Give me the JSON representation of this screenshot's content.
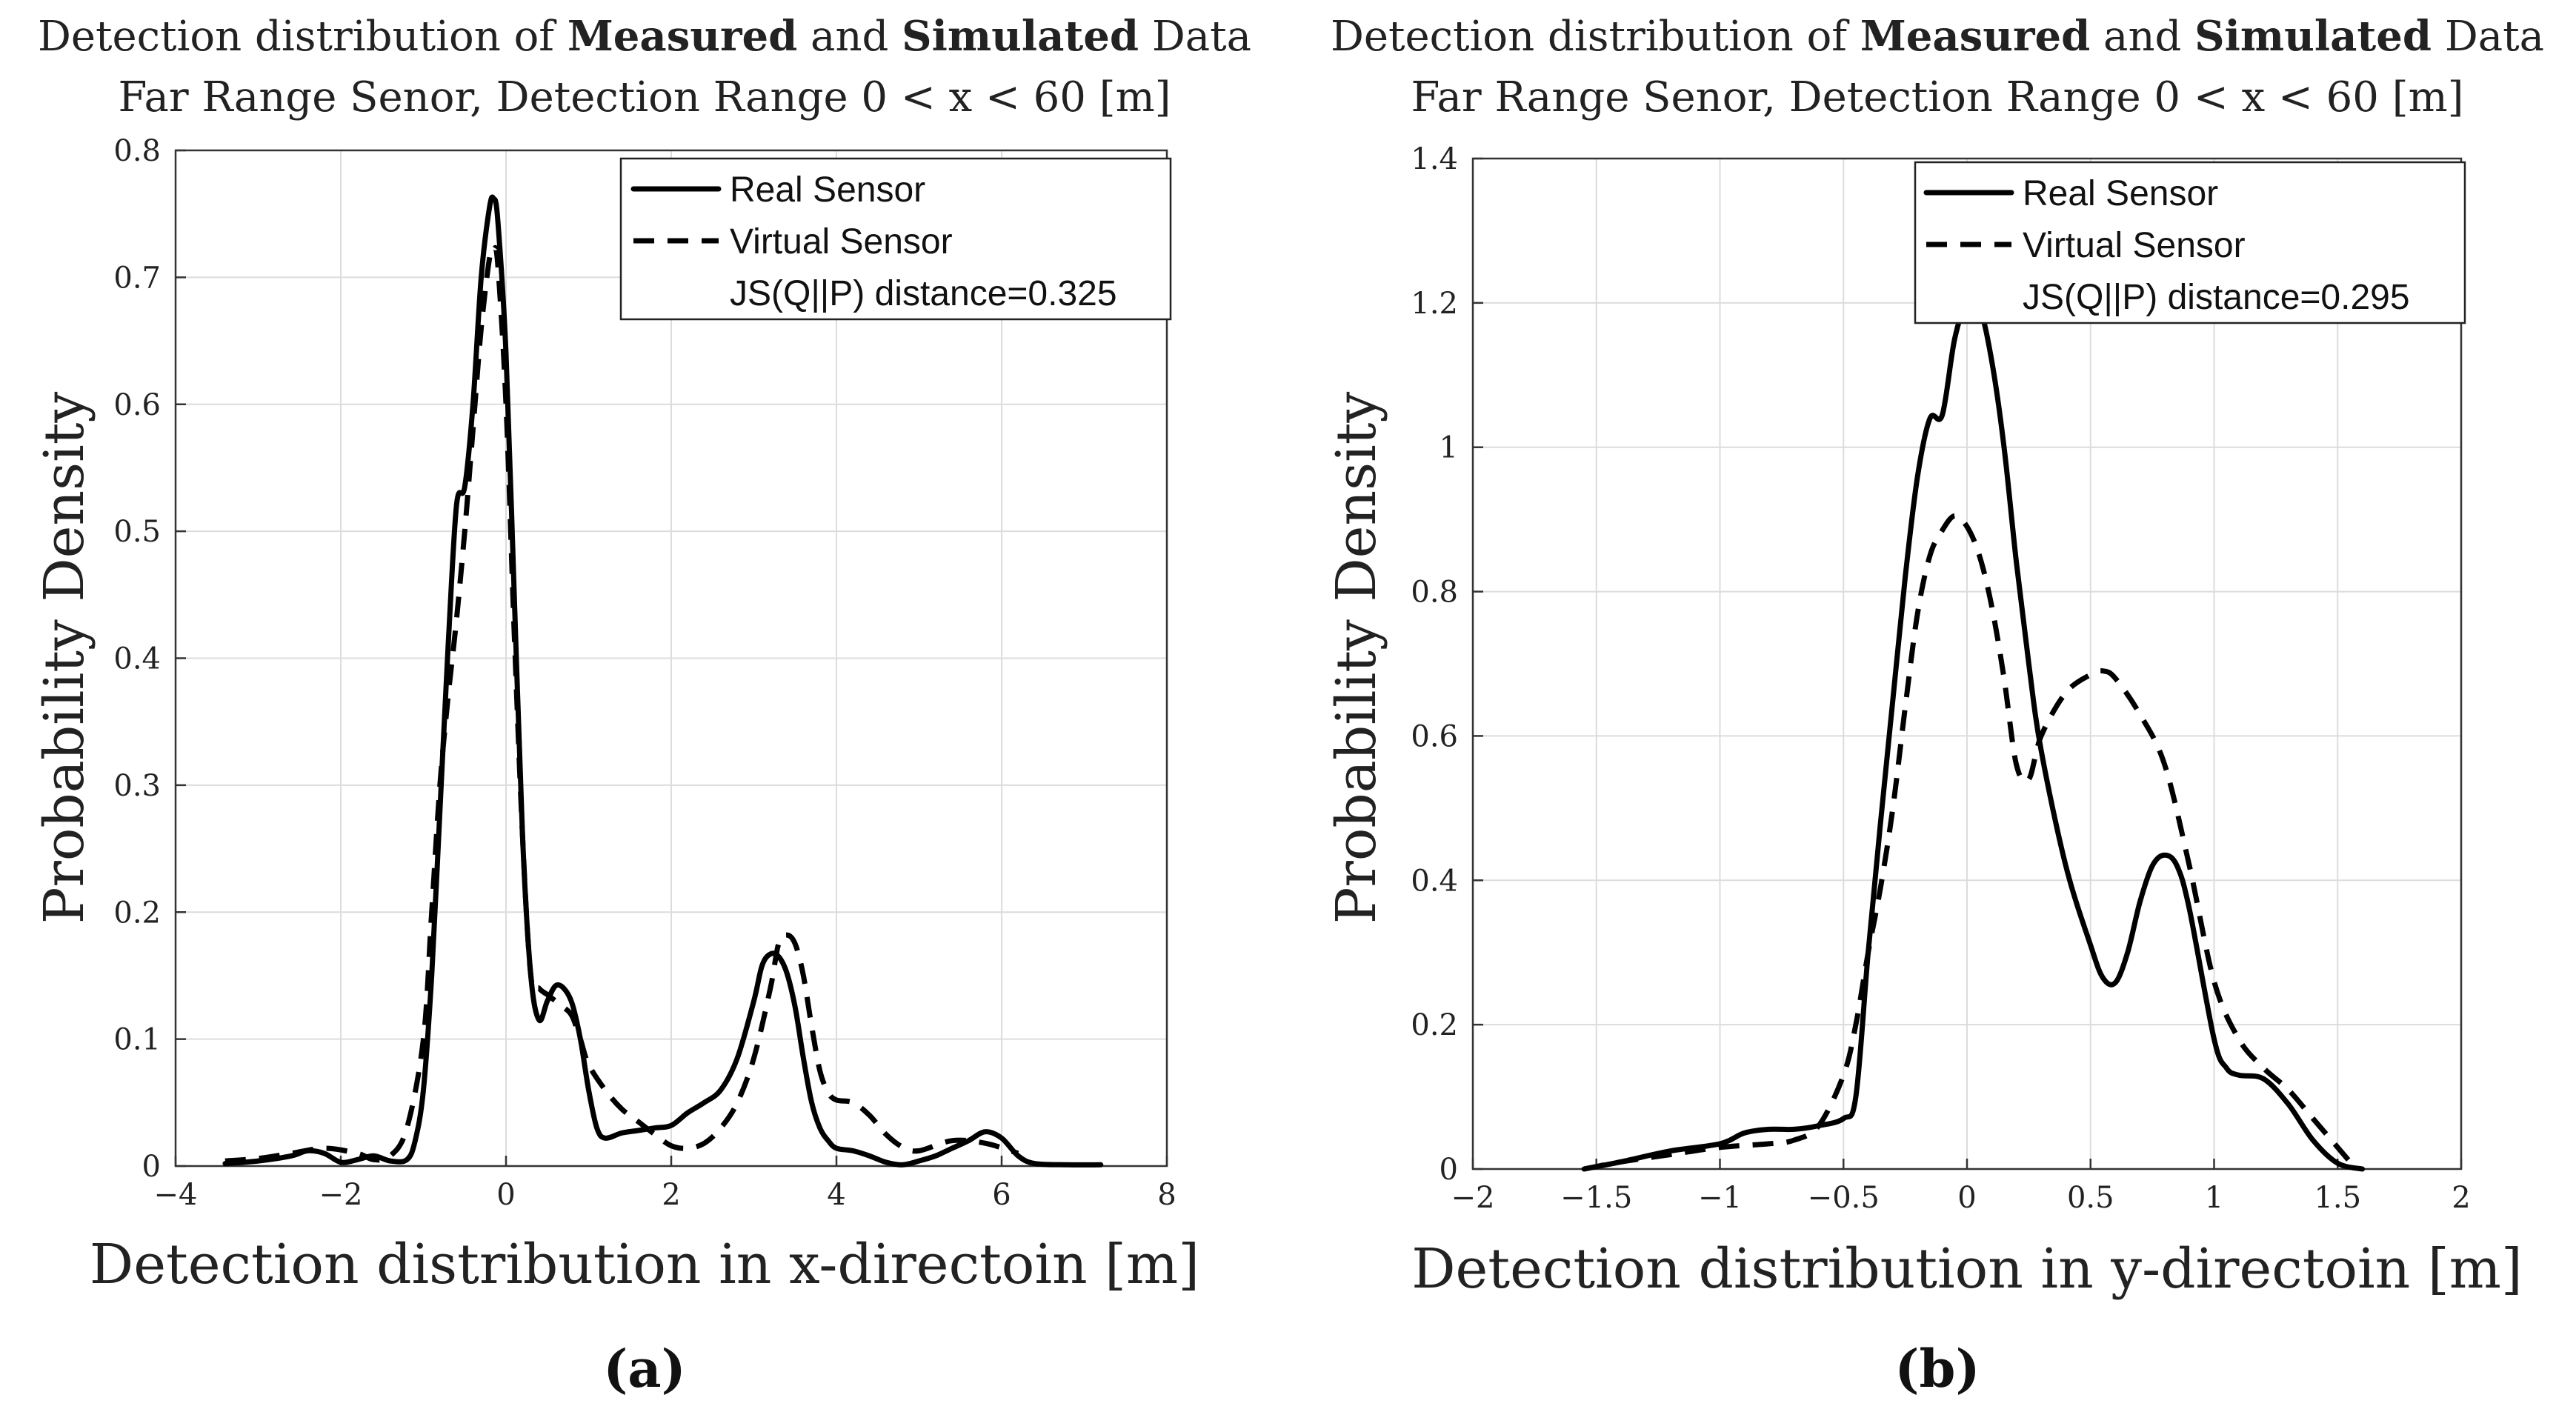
{
  "chart_data": [
    {
      "type": "line",
      "title_prefix": "Detection distribution of ",
      "title_bold_1": "Measured",
      "title_mid": " and ",
      "title_bold_2": "Simulated",
      "title_suffix": " Data",
      "subtitle": "Far Range Senor, Detection Range 0 < x < 60 [m]",
      "xlabel": "Detection distribution in x-directoin [m]",
      "ylabel": "Probability Density",
      "xlim": [
        -4,
        8
      ],
      "ylim": [
        0,
        0.8
      ],
      "xticks": [
        -4,
        -2,
        0,
        2,
        4,
        6,
        8
      ],
      "xtick_labels": [
        "−4",
        "−2",
        "0",
        "2",
        "4",
        "6",
        "8"
      ],
      "yticks": [
        0,
        0.1,
        0.2,
        0.3,
        0.4,
        0.5,
        0.6,
        0.7,
        0.8
      ],
      "ytick_labels": [
        "0",
        "0.1",
        "0.2",
        "0.3",
        "0.4",
        "0.5",
        "0.6",
        "0.7",
        "0.8"
      ],
      "grid": true,
      "legend_position": "top-right",
      "legend": [
        "Real Sensor",
        "Virtual Sensor",
        "JS(Q||P) distance=0.325"
      ],
      "caption": "(a)",
      "series": [
        {
          "name": "Real Sensor",
          "style": "solid",
          "x": [
            -3.4,
            -3.0,
            -2.6,
            -2.4,
            -2.2,
            -2.0,
            -1.8,
            -1.6,
            -1.4,
            -1.2,
            -1.1,
            -1.0,
            -0.9,
            -0.8,
            -0.7,
            -0.6,
            -0.5,
            -0.4,
            -0.3,
            -0.2,
            -0.15,
            -0.1,
            0.0,
            0.1,
            0.2,
            0.3,
            0.4,
            0.5,
            0.6,
            0.7,
            0.8,
            0.9,
            1.0,
            1.1,
            1.2,
            1.4,
            1.6,
            1.8,
            2.0,
            2.2,
            2.4,
            2.6,
            2.8,
            3.0,
            3.1,
            3.2,
            3.3,
            3.4,
            3.5,
            3.6,
            3.7,
            3.8,
            3.9,
            4.0,
            4.2,
            4.4,
            4.6,
            4.8,
            5.0,
            5.2,
            5.4,
            5.6,
            5.8,
            6.0,
            6.2,
            6.4,
            6.8,
            7.2
          ],
          "values": [
            0.002,
            0.004,
            0.008,
            0.012,
            0.01,
            0.003,
            0.005,
            0.008,
            0.004,
            0.005,
            0.02,
            0.06,
            0.15,
            0.28,
            0.41,
            0.52,
            0.535,
            0.6,
            0.7,
            0.755,
            0.762,
            0.745,
            0.64,
            0.45,
            0.26,
            0.15,
            0.115,
            0.13,
            0.142,
            0.14,
            0.128,
            0.1,
            0.06,
            0.03,
            0.022,
            0.026,
            0.028,
            0.03,
            0.032,
            0.042,
            0.05,
            0.06,
            0.085,
            0.13,
            0.158,
            0.167,
            0.165,
            0.152,
            0.125,
            0.085,
            0.05,
            0.03,
            0.02,
            0.014,
            0.012,
            0.008,
            0.003,
            0.001,
            0.004,
            0.008,
            0.014,
            0.02,
            0.027,
            0.022,
            0.008,
            0.002,
            0.001,
            0.001
          ]
        },
        {
          "name": "Virtual Sensor",
          "style": "dashed",
          "x": [
            -3.4,
            -3.0,
            -2.6,
            -2.2,
            -1.8,
            -1.6,
            -1.4,
            -1.2,
            -1.0,
            -0.9,
            -0.8,
            -0.7,
            -0.6,
            -0.5,
            -0.4,
            -0.3,
            -0.2,
            -0.15,
            -0.1,
            0.0,
            0.1,
            0.2,
            0.3,
            0.4,
            0.5,
            0.6,
            0.7,
            0.8,
            0.9,
            1.0,
            1.2,
            1.4,
            1.6,
            1.8,
            2.0,
            2.2,
            2.4,
            2.6,
            2.8,
            3.0,
            3.2,
            3.3,
            3.4,
            3.5,
            3.6,
            3.7,
            3.8,
            3.9,
            4.0,
            4.2,
            4.4,
            4.6,
            4.8,
            5.0,
            5.4,
            5.8,
            6.2
          ],
          "values": [
            0.004,
            0.006,
            0.01,
            0.014,
            0.01,
            0.005,
            0.008,
            0.03,
            0.1,
            0.2,
            0.3,
            0.37,
            0.43,
            0.5,
            0.58,
            0.66,
            0.715,
            0.722,
            0.71,
            0.6,
            0.42,
            0.26,
            0.15,
            0.14,
            0.135,
            0.13,
            0.125,
            0.118,
            0.1,
            0.08,
            0.06,
            0.045,
            0.035,
            0.025,
            0.016,
            0.014,
            0.018,
            0.03,
            0.05,
            0.085,
            0.14,
            0.175,
            0.182,
            0.175,
            0.15,
            0.11,
            0.075,
            0.058,
            0.052,
            0.05,
            0.04,
            0.025,
            0.015,
            0.012,
            0.02,
            0.018,
            0.01
          ]
        }
      ]
    },
    {
      "type": "line",
      "title_prefix": "Detection distribution of ",
      "title_bold_1": "Measured",
      "title_mid": " and ",
      "title_bold_2": "Simulated",
      "title_suffix": " Data",
      "subtitle": "Far Range Senor, Detection Range 0 < x < 60 [m]",
      "xlabel": "Detection distribution in y-directoin [m]",
      "ylabel": "Probability Density",
      "xlim": [
        -2,
        2
      ],
      "ylim": [
        0,
        1.4
      ],
      "xticks": [
        -2,
        -1.5,
        -1,
        -0.5,
        0,
        0.5,
        1,
        1.5,
        2
      ],
      "xtick_labels": [
        "−2",
        "−1.5",
        "−1",
        "−0.5",
        "0",
        "0.5",
        "1",
        "1.5",
        "2"
      ],
      "yticks": [
        0,
        0.2,
        0.4,
        0.6,
        0.8,
        1,
        1.2,
        1.4
      ],
      "ytick_labels": [
        "0",
        "0.2",
        "0.4",
        "0.6",
        "0.8",
        "1",
        "1.2",
        "1.4"
      ],
      "grid": true,
      "legend_position": "top-right",
      "legend": [
        "Real Sensor",
        "Virtual Sensor",
        "JS(Q||P) distance=0.295"
      ],
      "caption": "(b)",
      "series": [
        {
          "name": "Real Sensor",
          "style": "solid",
          "x": [
            -1.55,
            -1.4,
            -1.2,
            -1.0,
            -0.9,
            -0.8,
            -0.7,
            -0.6,
            -0.5,
            -0.45,
            -0.4,
            -0.35,
            -0.3,
            -0.25,
            -0.2,
            -0.15,
            -0.1,
            -0.05,
            0.0,
            0.05,
            0.1,
            0.15,
            0.2,
            0.25,
            0.3,
            0.4,
            0.5,
            0.55,
            0.6,
            0.65,
            0.7,
            0.75,
            0.8,
            0.85,
            0.9,
            1.0,
            1.05,
            1.1,
            1.2,
            1.3,
            1.4,
            1.5,
            1.6
          ],
          "values": [
            0.0,
            0.01,
            0.025,
            0.035,
            0.05,
            0.055,
            0.055,
            0.06,
            0.07,
            0.1,
            0.3,
            0.48,
            0.65,
            0.82,
            0.96,
            1.04,
            1.045,
            1.15,
            1.2,
            1.195,
            1.12,
            1.0,
            0.84,
            0.7,
            0.58,
            0.42,
            0.31,
            0.265,
            0.258,
            0.3,
            0.37,
            0.42,
            0.435,
            0.42,
            0.36,
            0.18,
            0.14,
            0.13,
            0.125,
            0.09,
            0.04,
            0.008,
            0.0
          ]
        },
        {
          "name": "Virtual Sensor",
          "style": "dashed",
          "x": [
            -1.55,
            -1.4,
            -1.2,
            -1.0,
            -0.8,
            -0.7,
            -0.6,
            -0.5,
            -0.45,
            -0.4,
            -0.35,
            -0.3,
            -0.25,
            -0.2,
            -0.15,
            -0.1,
            -0.05,
            0.0,
            0.05,
            0.1,
            0.15,
            0.2,
            0.25,
            0.3,
            0.4,
            0.5,
            0.55,
            0.6,
            0.7,
            0.8,
            0.9,
            1.0,
            1.1,
            1.2,
            1.3,
            1.4,
            1.5,
            1.55
          ],
          "values": [
            0.0,
            0.01,
            0.02,
            0.03,
            0.035,
            0.04,
            0.06,
            0.13,
            0.2,
            0.3,
            0.39,
            0.5,
            0.64,
            0.77,
            0.85,
            0.885,
            0.905,
            0.89,
            0.85,
            0.78,
            0.68,
            0.56,
            0.54,
            0.6,
            0.66,
            0.685,
            0.69,
            0.68,
            0.63,
            0.56,
            0.42,
            0.26,
            0.18,
            0.14,
            0.11,
            0.07,
            0.03,
            0.01
          ]
        }
      ]
    }
  ]
}
